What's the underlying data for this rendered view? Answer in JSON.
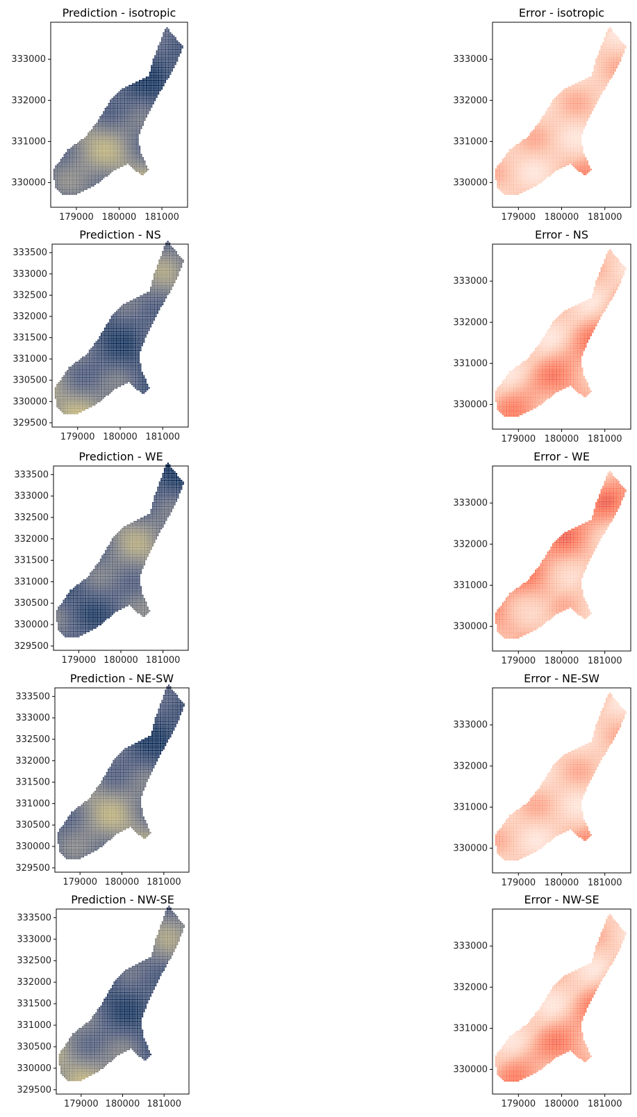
{
  "chart_data": [
    {
      "type": "heatmap",
      "title": "Prediction - isotropic",
      "xlim": [
        178400,
        181600
      ],
      "ylim": [
        329400,
        333900
      ],
      "xticks": [
        179000,
        180000,
        181000
      ],
      "yticks": [
        330000,
        331000,
        332000,
        333000
      ],
      "colormap": "cividis",
      "grid": false
    },
    {
      "type": "heatmap",
      "title": "Error - isotropic",
      "xlim": [
        178400,
        181600
      ],
      "ylim": [
        329400,
        333900
      ],
      "xticks": [
        179000,
        180000,
        181000
      ],
      "yticks": [
        330000,
        331000,
        332000,
        333000
      ],
      "colormap": "reds",
      "grid": false
    },
    {
      "type": "heatmap",
      "title": "Prediction - NS",
      "xlim": [
        178400,
        181600
      ],
      "ylim": [
        329400,
        333700
      ],
      "xticks": [
        179000,
        180000,
        181000
      ],
      "yticks": [
        329500,
        330000,
        330500,
        331000,
        331500,
        332000,
        332500,
        333000,
        333500
      ],
      "colormap": "cividis",
      "grid": false
    },
    {
      "type": "heatmap",
      "title": "Error - NS",
      "xlim": [
        178400,
        181600
      ],
      "ylim": [
        329400,
        333900
      ],
      "xticks": [
        179000,
        180000,
        181000
      ],
      "yticks": [
        330000,
        331000,
        332000,
        333000
      ],
      "colormap": "reds",
      "grid": false
    },
    {
      "type": "heatmap",
      "title": "Prediction - WE",
      "xlim": [
        178400,
        181600
      ],
      "ylim": [
        329400,
        333700
      ],
      "xticks": [
        179000,
        180000,
        181000
      ],
      "yticks": [
        329500,
        330000,
        330500,
        331000,
        331500,
        332000,
        332500,
        333000,
        333500
      ],
      "colormap": "cividis",
      "grid": false
    },
    {
      "type": "heatmap",
      "title": "Error - WE",
      "xlim": [
        178400,
        181600
      ],
      "ylim": [
        329400,
        333900
      ],
      "xticks": [
        179000,
        180000,
        181000
      ],
      "yticks": [
        330000,
        331000,
        332000,
        333000
      ],
      "colormap": "reds",
      "grid": false
    },
    {
      "type": "heatmap",
      "title": "Prediction - NE-SW",
      "xlim": [
        178400,
        181600
      ],
      "ylim": [
        329400,
        333700
      ],
      "xticks": [
        179000,
        180000,
        181000
      ],
      "yticks": [
        329500,
        330000,
        330500,
        331000,
        331500,
        332000,
        332500,
        333000,
        333500
      ],
      "colormap": "cividis",
      "grid": false
    },
    {
      "type": "heatmap",
      "title": "Error - NE-SW",
      "xlim": [
        178400,
        181600
      ],
      "ylim": [
        329400,
        333900
      ],
      "xticks": [
        179000,
        180000,
        181000
      ],
      "yticks": [
        330000,
        331000,
        332000,
        333000
      ],
      "colormap": "reds",
      "grid": false
    },
    {
      "type": "heatmap",
      "title": "Prediction - NW-SE",
      "xlim": [
        178400,
        181600
      ],
      "ylim": [
        329400,
        333700
      ],
      "xticks": [
        179000,
        180000,
        181000
      ],
      "yticks": [
        329500,
        330000,
        330500,
        331000,
        331500,
        332000,
        332500,
        333000,
        333500
      ],
      "colormap": "cividis",
      "grid": false
    },
    {
      "type": "heatmap",
      "title": "Error - NW-SE",
      "xlim": [
        178400,
        181600
      ],
      "ylim": [
        329400,
        333900
      ],
      "xticks": [
        179000,
        180000,
        181000
      ],
      "yticks": [
        330000,
        331000,
        332000,
        333000
      ],
      "colormap": "reds",
      "grid": false
    }
  ]
}
